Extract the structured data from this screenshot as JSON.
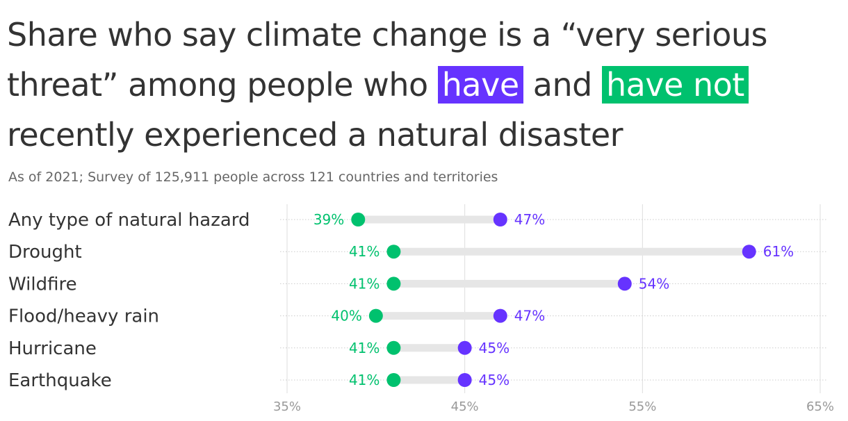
{
  "title": {
    "part1": "Share who say climate change is a “very serious threat” among people who",
    "have": "have",
    "and": "and",
    "have_not": "have not",
    "part2": "recently experienced a natural disaster"
  },
  "subtitle": "As of 2021; Survey of 125,911 people across 121 countries and territories",
  "colors": {
    "have": "#6633ff",
    "have_not": "#00c16e",
    "connector": "#e6e6e6",
    "grid": "#dddddd",
    "text": "#333333",
    "tick": "#999999"
  },
  "chart_data": {
    "type": "dot-plot",
    "categories": [
      "Any type of natural hazard",
      "Drought",
      "Wildfire",
      "Flood/heavy rain",
      "Hurricane",
      "Earthquake"
    ],
    "series": [
      {
        "name": "have",
        "values": [
          47,
          61,
          54,
          47,
          45,
          45
        ]
      },
      {
        "name": "have not",
        "values": [
          39,
          41,
          41,
          40,
          41,
          41
        ]
      }
    ],
    "value_labels": {
      "have": [
        "47%",
        "61%",
        "54%",
        "47%",
        "45%",
        "45%"
      ],
      "have_not": [
        "39%",
        "41%",
        "41%",
        "40%",
        "41%",
        "41%"
      ]
    },
    "xlim": [
      35,
      65
    ],
    "xticks": [
      35,
      45,
      55,
      65
    ],
    "xtick_labels": [
      "35%",
      "45%",
      "55%",
      "65%"
    ],
    "grid": true
  }
}
